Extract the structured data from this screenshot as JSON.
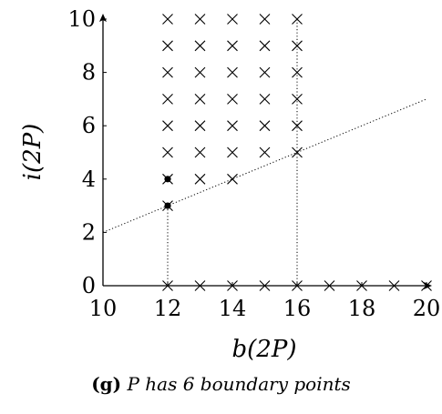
{
  "chart_data": {
    "type": "scatter",
    "title": "",
    "xlabel": "b(2P)",
    "ylabel": "i(2P)",
    "xlim": [
      10,
      20
    ],
    "ylim": [
      0,
      10
    ],
    "xticks": [
      "10",
      "12",
      "14",
      "16",
      "18",
      "20"
    ],
    "yticks": [
      "0",
      "2",
      "4",
      "6",
      "8",
      "10"
    ],
    "series": [
      {
        "marker": "cross",
        "points": [
          [
            12,
            5
          ],
          [
            12,
            6
          ],
          [
            12,
            7
          ],
          [
            12,
            8
          ],
          [
            12,
            9
          ],
          [
            12,
            10
          ],
          [
            13,
            4
          ],
          [
            13,
            5
          ],
          [
            13,
            6
          ],
          [
            13,
            7
          ],
          [
            13,
            8
          ],
          [
            13,
            9
          ],
          [
            13,
            10
          ],
          [
            14,
            4
          ],
          [
            14,
            5
          ],
          [
            14,
            6
          ],
          [
            14,
            7
          ],
          [
            14,
            8
          ],
          [
            14,
            9
          ],
          [
            14,
            10
          ],
          [
            15,
            5
          ],
          [
            15,
            6
          ],
          [
            15,
            7
          ],
          [
            15,
            8
          ],
          [
            15,
            9
          ],
          [
            15,
            10
          ],
          [
            16,
            5
          ],
          [
            16,
            6
          ],
          [
            16,
            7
          ],
          [
            16,
            8
          ],
          [
            16,
            9
          ],
          [
            16,
            10
          ],
          [
            12,
            0
          ],
          [
            13,
            0
          ],
          [
            14,
            0
          ],
          [
            15,
            0
          ],
          [
            16,
            0
          ],
          [
            17,
            0
          ],
          [
            18,
            0
          ],
          [
            19,
            0
          ],
          [
            20,
            0
          ]
        ]
      },
      {
        "marker": "dot",
        "points": [
          [
            12,
            3
          ],
          [
            12,
            4
          ]
        ]
      },
      {
        "type": "line",
        "style": "dotted",
        "points": [
          [
            10,
            2
          ],
          [
            20,
            7
          ]
        ]
      }
    ],
    "guides": [
      {
        "type": "vertical",
        "style": "dotted",
        "x": 12,
        "y_from": 0,
        "y_to": 3
      },
      {
        "type": "vertical",
        "style": "dotted",
        "x": 16,
        "y_from": 0,
        "y_to": 10
      }
    ]
  },
  "caption": {
    "tag": "(g)",
    "text": "P has 6 boundary points"
  }
}
